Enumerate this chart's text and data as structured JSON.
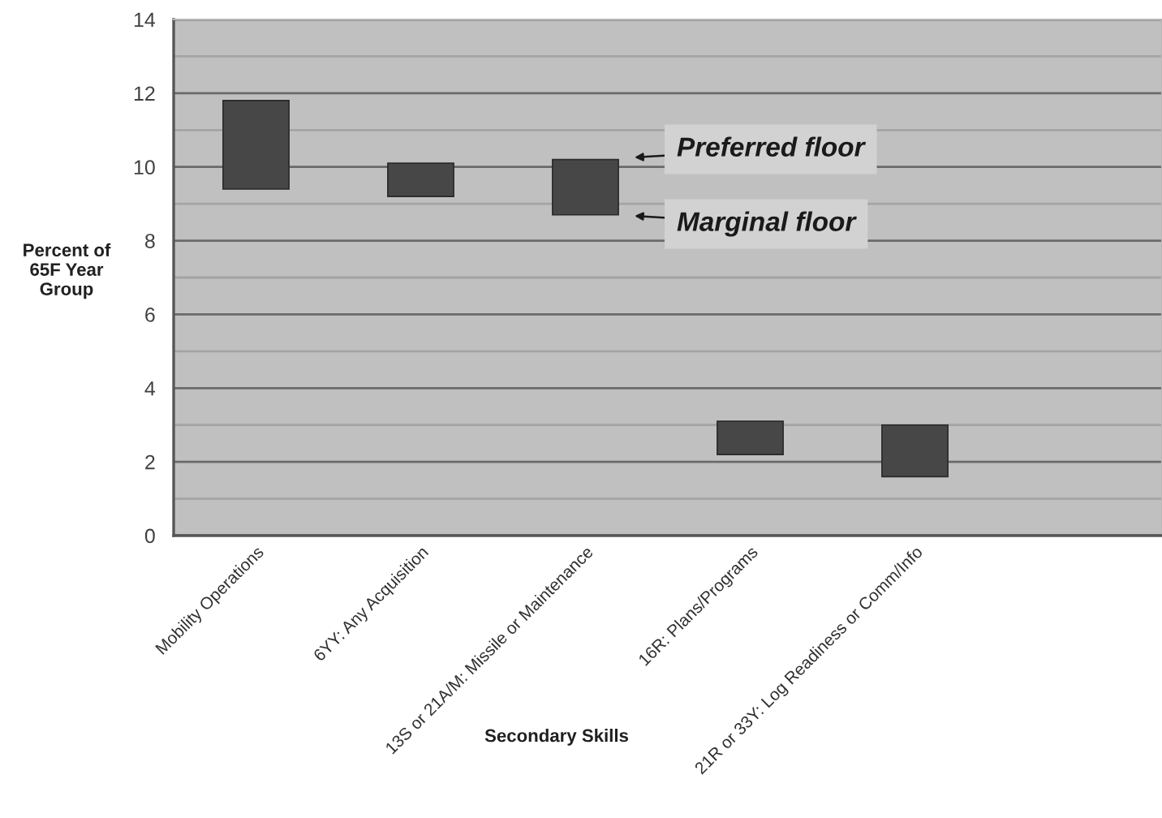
{
  "chart_data": {
    "type": "bar",
    "xlabel": "Secondary Skills",
    "ylabel": "Percent of\n65F Year\nGroup",
    "categories": [
      "Mobility Operations",
      "6YY: Any Acquisition",
      "13S or 21A/M: Missile or Maintenance",
      "16R: Plans/Programs",
      "21R or 33Y: Log Readiness or Comm/Info",
      null
    ],
    "base": [
      9.4,
      9.2,
      8.7,
      2.2,
      1.6,
      null
    ],
    "values": [
      2.4,
      0.9,
      1.5,
      0.9,
      1.4,
      null
    ],
    "color": "#474747",
    "ylim": [
      0,
      14
    ],
    "yticks": [
      0,
      {
        "value": 1,
        "label": null
      },
      2,
      {
        "value": 3,
        "label": null
      },
      4,
      {
        "value": 5,
        "label": null
      },
      6,
      {
        "value": 7,
        "label": null
      },
      8,
      {
        "value": 9,
        "label": null
      },
      10,
      {
        "value": 11,
        "label": null
      },
      12,
      {
        "value": 13,
        "label": null
      },
      14
    ],
    "grid": "y",
    "annotations": [
      "Preferred floor",
      "Marginal floor"
    ]
  }
}
